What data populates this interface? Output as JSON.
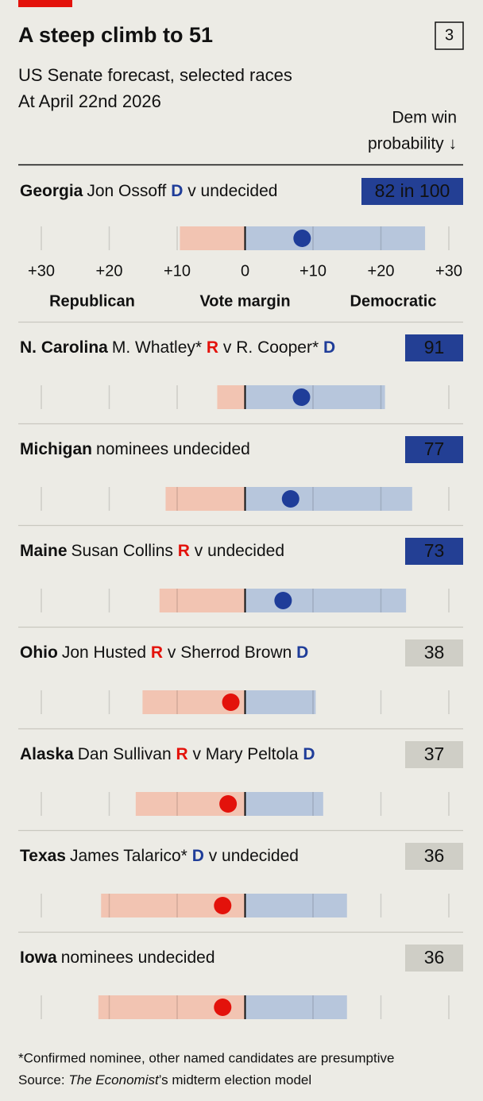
{
  "chart_data": {
    "type": "range-dot",
    "title": "A steep climb to 51",
    "panel_number": 3,
    "subtitle": "US Senate forecast, selected races",
    "date_note": "At April 22nd 2026",
    "prob_header": [
      "Dem win",
      "probability ↓"
    ],
    "x_label": "Vote margin",
    "left_label": "Republican",
    "right_label": "Democratic",
    "xlim": [
      -30,
      30
    ],
    "xticks": [
      {
        "value": -30,
        "label": "+30"
      },
      {
        "value": -20,
        "label": "+20"
      },
      {
        "value": -10,
        "label": "+10"
      },
      0,
      {
        "value": 10,
        "label": "+10"
      },
      {
        "value": 20,
        "label": "+20"
      },
      {
        "value": 30,
        "label": "+30"
      }
    ],
    "colors": {
      "rep": "#e3120b",
      "dem": "#1f3d99",
      "rep_bar": "#f2c4b2",
      "dem_bar": "#b7c6dc",
      "dem_box": "#233f94",
      "rep_box": "#cfcec6"
    },
    "races": [
      {
        "state": "Georgia",
        "parts": [
          {
            "text": "Jon Ossoff "
          },
          {
            "text": "D",
            "party": "dem"
          },
          {
            "text": " v undecided"
          }
        ],
        "probability": 82,
        "probability_label": "82 in 100",
        "low": -9.6,
        "mid": 8.4,
        "high": 26.5
      },
      {
        "state": "N. Carolina",
        "parts": [
          {
            "text": "M. Whatley* "
          },
          {
            "text": "R",
            "party": "rep"
          },
          {
            "text": " v R. Cooper* "
          },
          {
            "text": "D",
            "party": "dem"
          }
        ],
        "probability": 91,
        "low": -4.1,
        "mid": 8.3,
        "high": 20.6
      },
      {
        "state": "Michigan",
        "parts": [
          {
            "text": "nominees undecided"
          }
        ],
        "probability": 77,
        "low": -11.7,
        "mid": 6.7,
        "high": 24.6
      },
      {
        "state": "Maine",
        "parts": [
          {
            "text": "Susan Collins "
          },
          {
            "text": "R",
            "party": "rep"
          },
          {
            "text": " v undecided"
          }
        ],
        "probability": 73,
        "low": -12.6,
        "mid": 5.6,
        "high": 23.7
      },
      {
        "state": "Ohio",
        "parts": [
          {
            "text": "Jon Husted "
          },
          {
            "text": "R",
            "party": "rep"
          },
          {
            "text": " v Sherrod Brown "
          },
          {
            "text": "D",
            "party": "dem"
          }
        ],
        "probability": 38,
        "low": -15.1,
        "mid": -2.1,
        "high": 10.4
      },
      {
        "state": "Alaska",
        "parts": [
          {
            "text": "Dan Sullivan "
          },
          {
            "text": "R",
            "party": "rep"
          },
          {
            "text": " v Mary Peltola "
          },
          {
            "text": "D",
            "party": "dem"
          }
        ],
        "probability": 37,
        "low": -16.1,
        "mid": -2.5,
        "high": 11.5
      },
      {
        "state": "Texas",
        "parts": [
          {
            "text": "James Talarico* "
          },
          {
            "text": "D",
            "party": "dem"
          },
          {
            "text": " v undecided"
          }
        ],
        "probability": 36,
        "low": -21.2,
        "mid": -3.3,
        "high": 15.0
      },
      {
        "state": "Iowa",
        "parts": [
          {
            "text": "nominees undecided"
          }
        ],
        "probability": 36,
        "low": -21.6,
        "mid": -3.3,
        "high": 15.0
      }
    ],
    "footnote": "*Confirmed nominee, other named candidates are presumptive",
    "source": [
      {
        "text": "Source: "
      },
      {
        "text": "The Economist",
        "italic": true
      },
      {
        "text": "’s midterm election model"
      }
    ]
  }
}
